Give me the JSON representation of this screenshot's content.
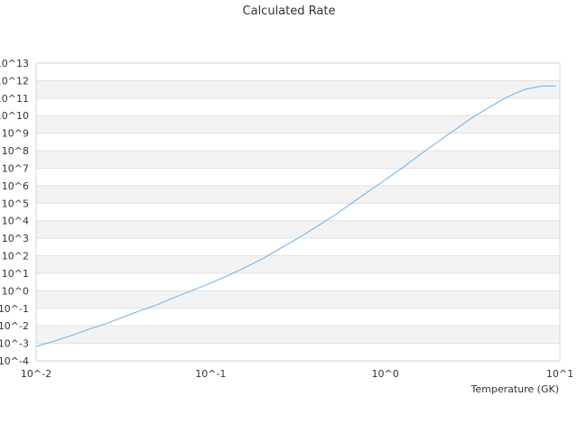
{
  "chart_data": {
    "type": "line",
    "title": "Calculated Rate",
    "xlabel": "Temperature (GK)",
    "ylabel": "",
    "xscale": "log",
    "yscale": "log",
    "xlim": [
      0.01,
      10
    ],
    "ylim": [
      0.0001,
      10000000000000
    ],
    "grid": true,
    "legend": "none",
    "x_ticks": [
      {
        "value": 0.01,
        "label": "10^-2"
      },
      {
        "value": 0.1,
        "label": "10^-1"
      },
      {
        "value": 1,
        "label": "10^0"
      },
      {
        "value": 10,
        "label": "10^1"
      }
    ],
    "y_ticks": [
      {
        "value": 0.0001,
        "label": "10^-4"
      },
      {
        "value": 0.001,
        "label": "10^-3"
      },
      {
        "value": 0.01,
        "label": "10^-2"
      },
      {
        "value": 0.1,
        "label": "10^-1"
      },
      {
        "value": 1,
        "label": "10^0"
      },
      {
        "value": 10,
        "label": "10^1"
      },
      {
        "value": 100,
        "label": "10^2"
      },
      {
        "value": 1000,
        "label": "10^3"
      },
      {
        "value": 10000,
        "label": "10^4"
      },
      {
        "value": 100000,
        "label": "10^5"
      },
      {
        "value": 1000000,
        "label": "10^6"
      },
      {
        "value": 10000000,
        "label": "10^7"
      },
      {
        "value": 100000000,
        "label": "10^8"
      },
      {
        "value": 1000000000,
        "label": "10^9"
      },
      {
        "value": 10000000000,
        "label": "10^10"
      },
      {
        "value": 100000000000,
        "label": "10^11"
      },
      {
        "value": 1000000000000,
        "label": "10^12"
      },
      {
        "value": 10000000000000,
        "label": "10^13"
      }
    ],
    "series": [
      {
        "color": "#6aaee8",
        "points": [
          [
            0.01,
            0.00068
          ],
          [
            0.0126,
            0.0013
          ],
          [
            0.0158,
            0.0027
          ],
          [
            0.02,
            0.0063
          ],
          [
            0.0251,
            0.013
          ],
          [
            0.0316,
            0.032
          ],
          [
            0.0398,
            0.076
          ],
          [
            0.0501,
            0.17
          ],
          [
            0.0631,
            0.45
          ],
          [
            0.0794,
            1.1
          ],
          [
            0.1,
            2.8
          ],
          [
            0.126,
            7.6
          ],
          [
            0.158,
            22
          ],
          [
            0.2,
            71
          ],
          [
            0.251,
            270
          ],
          [
            0.316,
            1000
          ],
          [
            0.398,
            4200
          ],
          [
            0.501,
            18000
          ],
          [
            0.631,
            89000
          ],
          [
            0.794,
            450000
          ],
          [
            1,
            2200000
          ],
          [
            1.26,
            11000000
          ],
          [
            1.58,
            60000000
          ],
          [
            2,
            320000000
          ],
          [
            2.51,
            1600000000
          ],
          [
            3.16,
            7900000000
          ],
          [
            3.98,
            32000000000
          ],
          [
            5.01,
            120000000000
          ],
          [
            6.31,
            320000000000
          ],
          [
            7.94,
            500000000000
          ],
          [
            9.5,
            500000000000
          ]
        ]
      }
    ]
  }
}
